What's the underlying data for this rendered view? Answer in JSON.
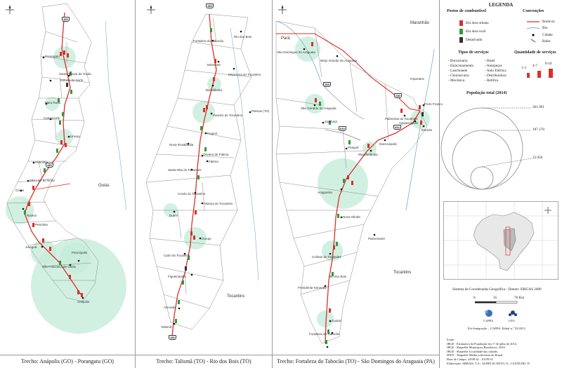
{
  "panels": [
    {
      "caption": "Trecho: Anápolis (GO) - Porangatu (GO)",
      "shields": [
        "153"
      ],
      "states": [
        "Goiás"
      ],
      "towns": [
        "Porangatu",
        "Santa Tereza de Goiás",
        "Estrela do Norte",
        "Mara Rosa",
        "Campinorte",
        "Uruaçu",
        "Hidrolina",
        "São Luiz do Norte",
        "Rialma",
        "Jaraguá",
        "Petrolina",
        "São Francisco de Goiás",
        "Anápolis",
        "Pirenópolis",
        "Ceres"
      ]
    },
    {
      "caption": "Trecho: Talismã (TO) - Rio dos Bois (TO)",
      "shields": [
        "153"
      ],
      "states": [
        "Tocantins"
      ],
      "towns": [
        "Fortaleza do Tabocão",
        "Rio dos Bois",
        "Miranorte",
        "Miracema do Tocantins",
        "Barrolândia",
        "Paraíso do Tocantins",
        "Palmas (TO)",
        "Pugmil",
        "Nova Rosalândia",
        "Oliveira de Fátima",
        "Fátima",
        "Santa Rita do Tocantins",
        "Crixás do Tocantins",
        "Aliança do Tocantins",
        "Gurupi",
        "Dueré",
        "Cariri do Tocantins",
        "Figueirópolis",
        "Alvorada",
        "Talismã"
      ]
    },
    {
      "caption": "Trecho: Fortaleza do Tabocão (TO) - São Domingos do Araguaia (PA)",
      "shields": [
        "153",
        "010",
        "230",
        "222"
      ],
      "states": [
        "Pará",
        "Maranhão",
        "Tocantins"
      ],
      "towns": [
        "São Domingos do Araguaia",
        "Brejo Grande do Araguaia",
        "São Geraldo do Araguaia",
        "Xambioá",
        "Piraquê",
        "Wanderlândia",
        "Darcinópolis",
        "Palmeiras do Tocantins",
        "Aguiarnópolis",
        "Porto Franco",
        "Estreito",
        "Araguaína",
        "Nova Olinda",
        "Palmeirante",
        "Colinas do Tocantins",
        "Presidente Kennedy",
        "Guaraí",
        "Rio dos Bois",
        "Fortaleza do Tabocão",
        "Imperatriz"
      ]
    }
  ],
  "legend": {
    "title": "LEGENDA",
    "postos_title": "Postos de combustível",
    "postos": [
      "Em área urbana",
      "Em área rural",
      "Desativado"
    ],
    "convencoes_title": "Convenções",
    "convencoes": [
      "Rodovia",
      "Rio",
      "Cidade",
      "Balsa"
    ],
    "tipos_title": "Tipos de serviços",
    "tipos_col1": [
      "- Borracharia",
      "- Estacionamento",
      "- Lanchonete",
      "- Churrascaria",
      "- Mecânica"
    ],
    "tipos_col2": [
      "- Hotel",
      "- Autopeças",
      "- Auto Elétrica",
      "- Distribuidora",
      "- Retífica"
    ],
    "quantidade_title": "Quantidade de serviços",
    "quantidade": [
      "1-3",
      "4-7",
      "8-10"
    ],
    "populacao_title": "População total (2014)",
    "populacao_values": [
      "361.991",
      "187.178",
      "22.956"
    ],
    "sistema": "Sistema de Coordenadas Geográfica - Datum: SIRGAS 2000",
    "scale_labels": [
      "0",
      "35",
      "70 Km"
    ],
    "logos": [
      "CAPES",
      "UFG"
    ],
    "edital": "Pró-Integração – CAPES. Edital n.º 55/2013",
    "fonte_title": "Fonte:",
    "fonte": [
      "IBGE - Estimativa da População em 1º de julho de 2014.",
      "IBGE - Shapefile Municípios Brasileiros, 2010.",
      "IBGE - Shapefile Localidade das cidades",
      "DNIT - Shapefile Malha rodoviária do Brasil.",
      "Base de Campo: 24/08/14 – 01/09/14",
      "Elaboração: ARRAIS, T.A.; AURÉLIO NETO, O.; CASTILHO, D."
    ]
  },
  "colors": {
    "road": "#d9302b",
    "river": "#8aa6c8",
    "halo": "#c6ecd9",
    "urban": "#d9302b",
    "rural": "#2f9a3a",
    "disabled": "#333333",
    "border": "#9a9a9a"
  }
}
